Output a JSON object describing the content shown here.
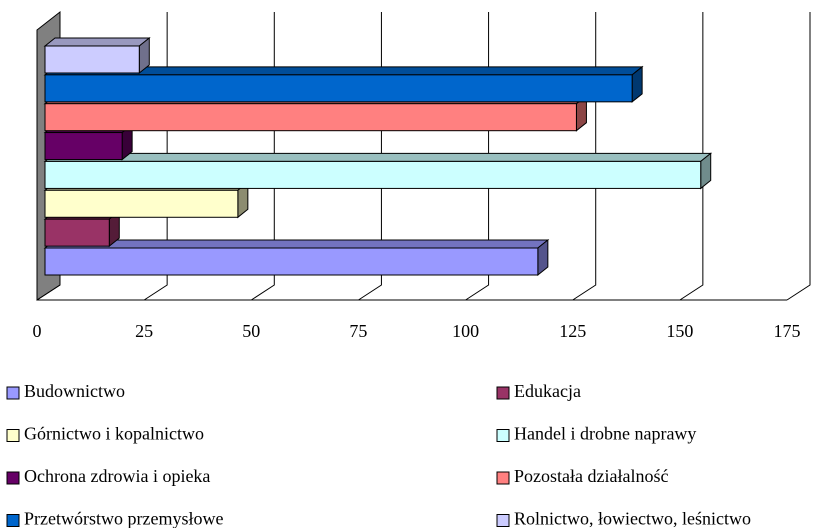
{
  "chart_data": {
    "type": "bar3d",
    "orientation": "horizontal",
    "categories": [
      null
    ],
    "series": [
      {
        "name": "Budownictwo",
        "color": "#9999ff",
        "values": [
          115
        ]
      },
      {
        "name": "Edukacja",
        "color": "#993366",
        "values": [
          15
        ]
      },
      {
        "name": "Górnictwo i kopalnictwo",
        "color": "#ffffcc",
        "values": [
          45
        ]
      },
      {
        "name": "Handel i drobne naprawy",
        "color": "#ccffff",
        "values": [
          153
        ]
      },
      {
        "name": "Ochrona zdrowia i opieka",
        "color": "#660066",
        "values": [
          18
        ]
      },
      {
        "name": "Pozostała działalność",
        "color": "#ff8080",
        "values": [
          124
        ]
      },
      {
        "name": "Przetwórstwo przemysłowe",
        "color": "#0066cc",
        "values": [
          137
        ]
      },
      {
        "name": "Rolnictwo, łowiectwo, leśnictwo",
        "color": "#ccccff",
        "values": [
          22
        ]
      }
    ],
    "xlim": [
      0,
      175
    ],
    "xticks": [
      0,
      25,
      50,
      75,
      100,
      125,
      150,
      175
    ],
    "grid": true,
    "legend": "bottom"
  }
}
